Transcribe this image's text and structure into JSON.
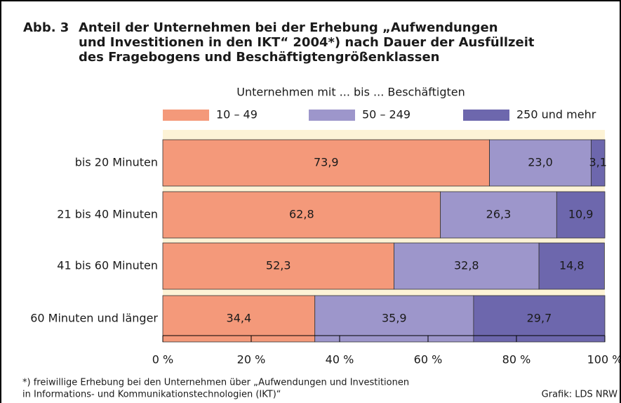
{
  "chart_data": {
    "type": "stacked_barh",
    "title_prefix": "Abb. 3",
    "title": [
      "Anteil der Unternehmen bei der Erhebung „Aufwendungen",
      "und Investitionen in den IKT“ 2004*) nach Dauer der Ausfüllzeit",
      "des Fragebogens und Beschäftigtengrößenklassen"
    ],
    "legend_title": "Unternehmen mit ... bis ... Beschäftigten",
    "categories": [
      "bis 20 Minuten",
      "21 bis 40 Minuten",
      "41 bis 60 Minuten",
      "60 Minuten und länger"
    ],
    "series": [
      {
        "name": "10 – 49",
        "color": "#f4997a",
        "values": [
          73.9,
          62.8,
          52.3,
          34.4
        ],
        "value_labels": [
          "73,9",
          "62,8",
          "52,3",
          "34,4"
        ]
      },
      {
        "name": "50 – 249",
        "color": "#9d96cb",
        "values": [
          23.0,
          26.3,
          32.8,
          35.9
        ],
        "value_labels": [
          "23,0",
          "26,3",
          "32,8",
          "35,9"
        ]
      },
      {
        "name": "250 und mehr",
        "color": "#6d67ad",
        "values": [
          3.1,
          10.9,
          14.8,
          29.7
        ],
        "value_labels": [
          "3,1",
          "10,9",
          "14,8",
          "29,7"
        ]
      }
    ],
    "xlim": [
      0,
      100
    ],
    "xticks": [
      {
        "value": 0,
        "label": "0 %"
      },
      {
        "value": 20,
        "label": "20 %"
      },
      {
        "value": 40,
        "label": "40 %"
      },
      {
        "value": 60,
        "label": "60 %"
      },
      {
        "value": 80,
        "label": "80 %"
      },
      {
        "value": 100,
        "label": "100 %"
      }
    ],
    "footnote": [
      "*) freiwillige Erhebung bei den Unternehmen über „Aufwendungen und Investitionen",
      "in Informations- und Kommunikationstechnologien (IKT)“"
    ],
    "source": "Grafik: LDS NRW"
  }
}
